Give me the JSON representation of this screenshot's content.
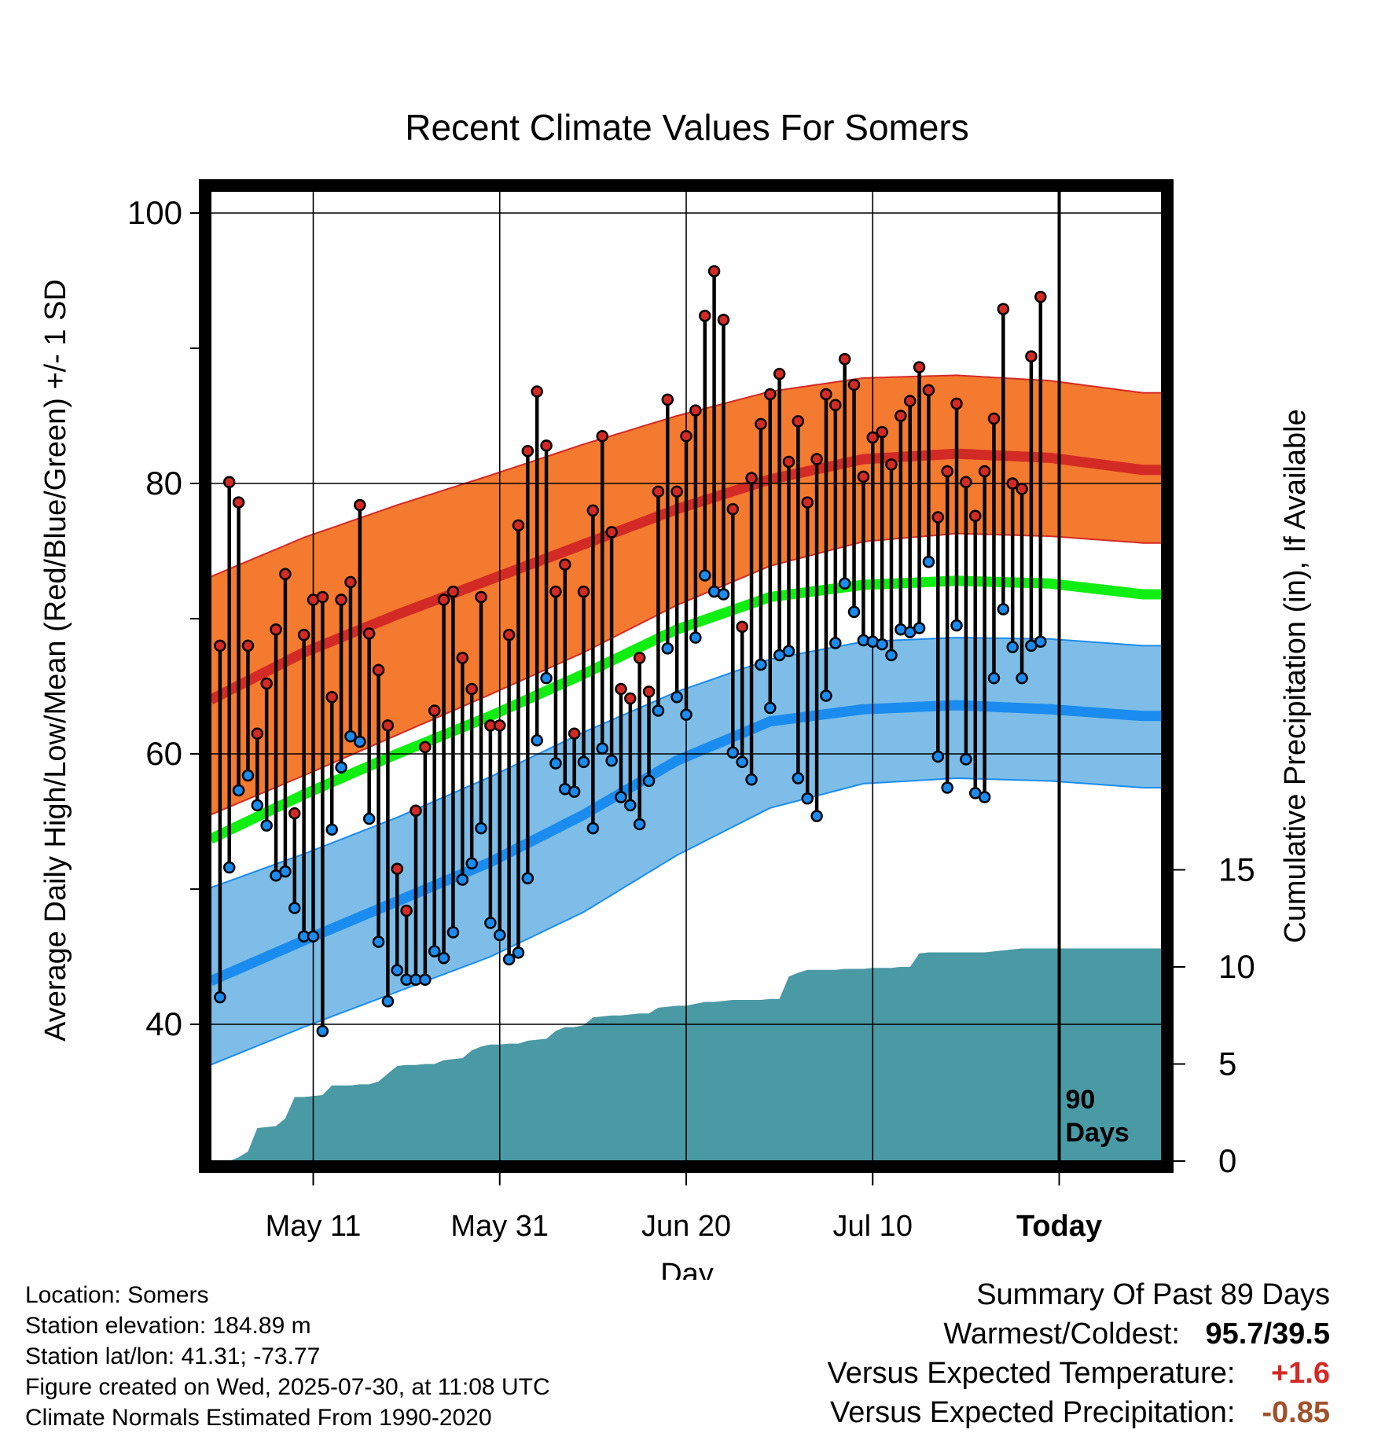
{
  "chart_data": {
    "type": "line",
    "title": "Recent Climate Values For Somers",
    "xlabel": "Day",
    "ylabel_left": "Average Daily High/Low/Mean (Red/Blue/Green) +/- 1 SD",
    "ylabel_right": "Cumulative Precipitation (in), If Available",
    "x_tick_labels": [
      "May 11",
      "May 31",
      "Jun 20",
      "Jul 10",
      "Today"
    ],
    "x_tick_days": [
      11,
      31,
      51,
      71,
      91
    ],
    "y_left_ticks": [
      40,
      60,
      80,
      100
    ],
    "y_left_range": [
      30,
      100
    ],
    "y_right_ticks": [
      0,
      5,
      10,
      15
    ],
    "today_marker": {
      "line1": "90",
      "line2": "Days"
    },
    "colors": {
      "high_band": "#f47a2f",
      "high_normal": "#d42a25",
      "low_band": "#7dbde7",
      "low_normal": "#1a8cf0",
      "mean_normal": "#11ee11",
      "precip": "#4a9aa5",
      "high_dot": "#d42a25",
      "low_dot": "#1a8cf0"
    },
    "normals": {
      "days": [
        0,
        10,
        20,
        30,
        40,
        50,
        60,
        70,
        80,
        90,
        100
      ],
      "high_normal": [
        64.0,
        67.5,
        70.3,
        72.9,
        75.5,
        78.1,
        80.3,
        81.8,
        82.2,
        81.9,
        81.0
      ],
      "high_upper": [
        73.1,
        76.0,
        78.4,
        80.6,
        82.9,
        85.0,
        86.8,
        87.8,
        88.0,
        87.6,
        86.7
      ],
      "high_lower": [
        55.5,
        58.4,
        61.4,
        64.4,
        67.5,
        71.0,
        73.9,
        75.7,
        76.3,
        76.1,
        75.6
      ],
      "mean_normal": [
        53.7,
        57.0,
        60.0,
        62.8,
        65.9,
        69.2,
        71.6,
        72.5,
        72.8,
        72.6,
        71.8
      ],
      "low_normal": [
        43.2,
        46.2,
        49.1,
        52.0,
        55.5,
        59.5,
        62.4,
        63.3,
        63.6,
        63.3,
        62.8
      ],
      "low_upper": [
        50.1,
        52.6,
        55.3,
        58.3,
        61.6,
        64.6,
        67.0,
        68.3,
        68.6,
        68.5,
        68.0
      ],
      "low_lower": [
        37.0,
        39.8,
        42.4,
        45.0,
        48.3,
        52.5,
        56.0,
        57.8,
        58.2,
        58.0,
        57.5
      ]
    },
    "daily": {
      "start_day": 1,
      "highs": [
        68.0,
        80.1,
        78.6,
        68.0,
        61.5,
        65.2,
        69.2,
        73.3,
        55.6,
        68.8,
        71.4,
        71.6,
        64.2,
        71.4,
        72.7,
        78.4,
        68.9,
        66.2,
        62.1,
        51.5,
        48.4,
        55.8,
        60.5,
        63.2,
        71.4,
        72.0,
        67.1,
        64.8,
        71.6,
        62.1,
        62.1,
        68.8,
        76.9,
        82.4,
        86.8,
        82.8,
        72.0,
        74.0,
        61.5,
        72.0,
        78.0,
        83.5,
        76.4,
        64.8,
        64.1,
        67.1,
        64.6,
        79.4,
        86.2,
        79.4,
        83.5,
        85.4,
        92.4,
        95.7,
        92.1,
        78.1,
        69.4,
        80.4,
        84.4,
        86.6,
        88.1,
        81.6,
        84.6,
        78.6,
        81.8,
        86.6,
        85.8,
        89.2,
        87.3,
        80.5,
        83.4,
        83.8,
        81.4,
        85.0,
        86.1,
        88.6,
        86.9,
        77.5,
        80.9,
        85.9,
        80.1,
        77.6,
        80.9,
        84.8,
        92.9,
        80.0,
        79.6,
        89.4,
        93.8
      ],
      "lows": [
        42.0,
        51.6,
        57.3,
        58.4,
        56.2,
        54.7,
        51.0,
        51.3,
        48.6,
        46.5,
        46.5,
        39.5,
        54.4,
        59.0,
        61.3,
        60.9,
        55.2,
        46.1,
        41.7,
        44.0,
        43.3,
        43.3,
        43.3,
        45.4,
        44.9,
        46.8,
        50.7,
        51.9,
        54.5,
        47.5,
        46.6,
        44.8,
        45.3,
        50.8,
        61.0,
        65.6,
        59.3,
        57.4,
        57.2,
        59.4,
        54.5,
        60.4,
        59.5,
        56.8,
        56.2,
        54.8,
        58.0,
        63.2,
        67.8,
        64.2,
        62.9,
        68.6,
        73.2,
        72.0,
        71.8,
        60.1,
        59.4,
        58.1,
        66.6,
        63.4,
        67.3,
        67.6,
        58.2,
        56.7,
        55.4,
        64.3,
        68.2,
        72.6,
        70.5,
        68.4,
        68.3,
        68.1,
        67.3,
        69.2,
        69.0,
        69.3,
        74.2,
        59.8,
        57.5,
        69.5,
        59.6,
        57.1,
        56.8,
        65.6,
        70.7,
        67.9,
        65.6,
        68.0,
        68.3
      ]
    },
    "precip_cumulative": {
      "days": [
        1,
        2,
        3,
        4,
        5,
        6,
        7,
        8,
        9,
        10,
        11,
        12,
        13,
        14,
        15,
        16,
        17,
        18,
        19,
        20,
        21,
        22,
        23,
        24,
        25,
        26,
        27,
        28,
        29,
        30,
        31,
        32,
        33,
        34,
        35,
        36,
        37,
        38,
        39,
        40,
        41,
        42,
        43,
        44,
        45,
        46,
        47,
        48,
        49,
        50,
        51,
        52,
        53,
        54,
        55,
        56,
        57,
        58,
        59,
        60,
        61,
        62,
        63,
        64,
        65,
        66,
        67,
        68,
        69,
        70,
        71,
        72,
        73,
        74,
        75,
        76,
        77,
        78,
        79,
        80,
        81,
        82,
        83,
        84,
        85,
        86,
        87,
        88,
        89,
        90,
        91,
        92,
        93,
        94,
        95,
        96,
        97,
        98,
        99,
        100,
        101,
        102
      ],
      "values": [
        0.0,
        0.0,
        0.2,
        0.5,
        1.7,
        1.75,
        1.8,
        2.2,
        3.3,
        3.3,
        3.35,
        3.4,
        3.9,
        3.9,
        3.9,
        3.95,
        3.95,
        4.1,
        4.5,
        4.9,
        4.95,
        4.95,
        5.0,
        5.0,
        5.2,
        5.25,
        5.3,
        5.7,
        5.9,
        6.0,
        6.0,
        6.05,
        6.05,
        6.2,
        6.25,
        6.3,
        6.7,
        6.9,
        6.9,
        7.0,
        7.4,
        7.45,
        7.5,
        7.5,
        7.55,
        7.6,
        7.6,
        7.9,
        7.95,
        8.0,
        8.0,
        8.1,
        8.2,
        8.2,
        8.25,
        8.3,
        8.3,
        8.3,
        8.3,
        8.35,
        8.35,
        9.5,
        9.7,
        9.85,
        9.85,
        9.85,
        9.85,
        9.9,
        9.9,
        9.9,
        9.95,
        9.95,
        9.95,
        10.0,
        10.0,
        10.7,
        10.75,
        10.75,
        10.75,
        10.75,
        10.75,
        10.75,
        10.75,
        10.8,
        10.85,
        10.9,
        10.95,
        10.95,
        10.95,
        10.95,
        10.95,
        10.95,
        10.95,
        10.95,
        10.95,
        10.95,
        10.95,
        10.95,
        10.95,
        10.95,
        10.95,
        10.95
      ]
    }
  },
  "info": {
    "location": "Location: Somers",
    "elevation": "Station elevation: 184.89 m",
    "latlon": "Station lat/lon: 41.31; -73.77",
    "created": "Figure created on Wed, 2025-07-30, at 11:08 UTC",
    "normals": "Climate Normals Estimated From 1990-2020"
  },
  "summary": {
    "heading": "Summary Of Past 89 Days",
    "warmest_coldest_label": "Warmest/Coldest:",
    "warmest_coldest_value": "95.7/39.5",
    "temp_label": "Versus Expected Temperature:",
    "temp_value": "+1.6",
    "temp_color": "#d42a25",
    "precip_label": "Versus Expected Precipitation:",
    "precip_value": "-0.85",
    "precip_color": "#a0522d"
  }
}
